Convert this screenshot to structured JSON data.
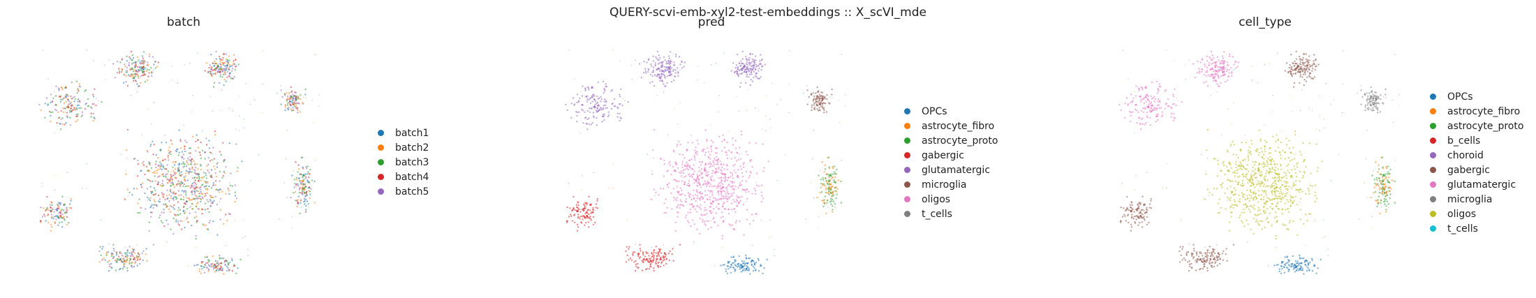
{
  "figure": {
    "suptitle": "QUERY-scvi-emb-xyl2-test-embeddings :: X_scVI_mde"
  },
  "chart_data": [
    {
      "type": "scatter",
      "title": "batch",
      "xlabel": "",
      "ylabel": "",
      "grid": false,
      "legend": "right",
      "series": [
        {
          "name": "batch1",
          "color": "#1f77b4"
        },
        {
          "name": "batch2",
          "color": "#ff7f0e"
        },
        {
          "name": "batch3",
          "color": "#2ca02c"
        },
        {
          "name": "batch4",
          "color": "#d62728"
        },
        {
          "name": "batch5",
          "color": "#9467bd"
        }
      ]
    },
    {
      "type": "scatter",
      "title": "pred",
      "xlabel": "",
      "ylabel": "",
      "grid": false,
      "legend": "right",
      "series": [
        {
          "name": "OPCs",
          "color": "#1f77b4"
        },
        {
          "name": "astrocyte_fibro",
          "color": "#ff7f0e"
        },
        {
          "name": "astrocyte_proto",
          "color": "#2ca02c"
        },
        {
          "name": "gabergic",
          "color": "#d62728"
        },
        {
          "name": "glutamatergic",
          "color": "#9467bd"
        },
        {
          "name": "microglia",
          "color": "#8c564b"
        },
        {
          "name": "oligos",
          "color": "#e377c2"
        },
        {
          "name": "t_cells",
          "color": "#7f7f7f"
        }
      ]
    },
    {
      "type": "scatter",
      "title": "cell_type",
      "xlabel": "",
      "ylabel": "",
      "grid": false,
      "legend": "right",
      "series": [
        {
          "name": "OPCs",
          "color": "#1f77b4"
        },
        {
          "name": "astrocyte_fibro",
          "color": "#ff7f0e"
        },
        {
          "name": "astrocyte_proto",
          "color": "#2ca02c"
        },
        {
          "name": "b_cells",
          "color": "#d62728"
        },
        {
          "name": "choroid",
          "color": "#9467bd"
        },
        {
          "name": "gabergic",
          "color": "#8c564b"
        },
        {
          "name": "glutamatergic",
          "color": "#e377c2"
        },
        {
          "name": "microglia",
          "color": "#7f7f7f"
        },
        {
          "name": "oligos",
          "color": "#bcbd22"
        },
        {
          "name": "t_cells",
          "color": "#17becf"
        }
      ]
    }
  ]
}
